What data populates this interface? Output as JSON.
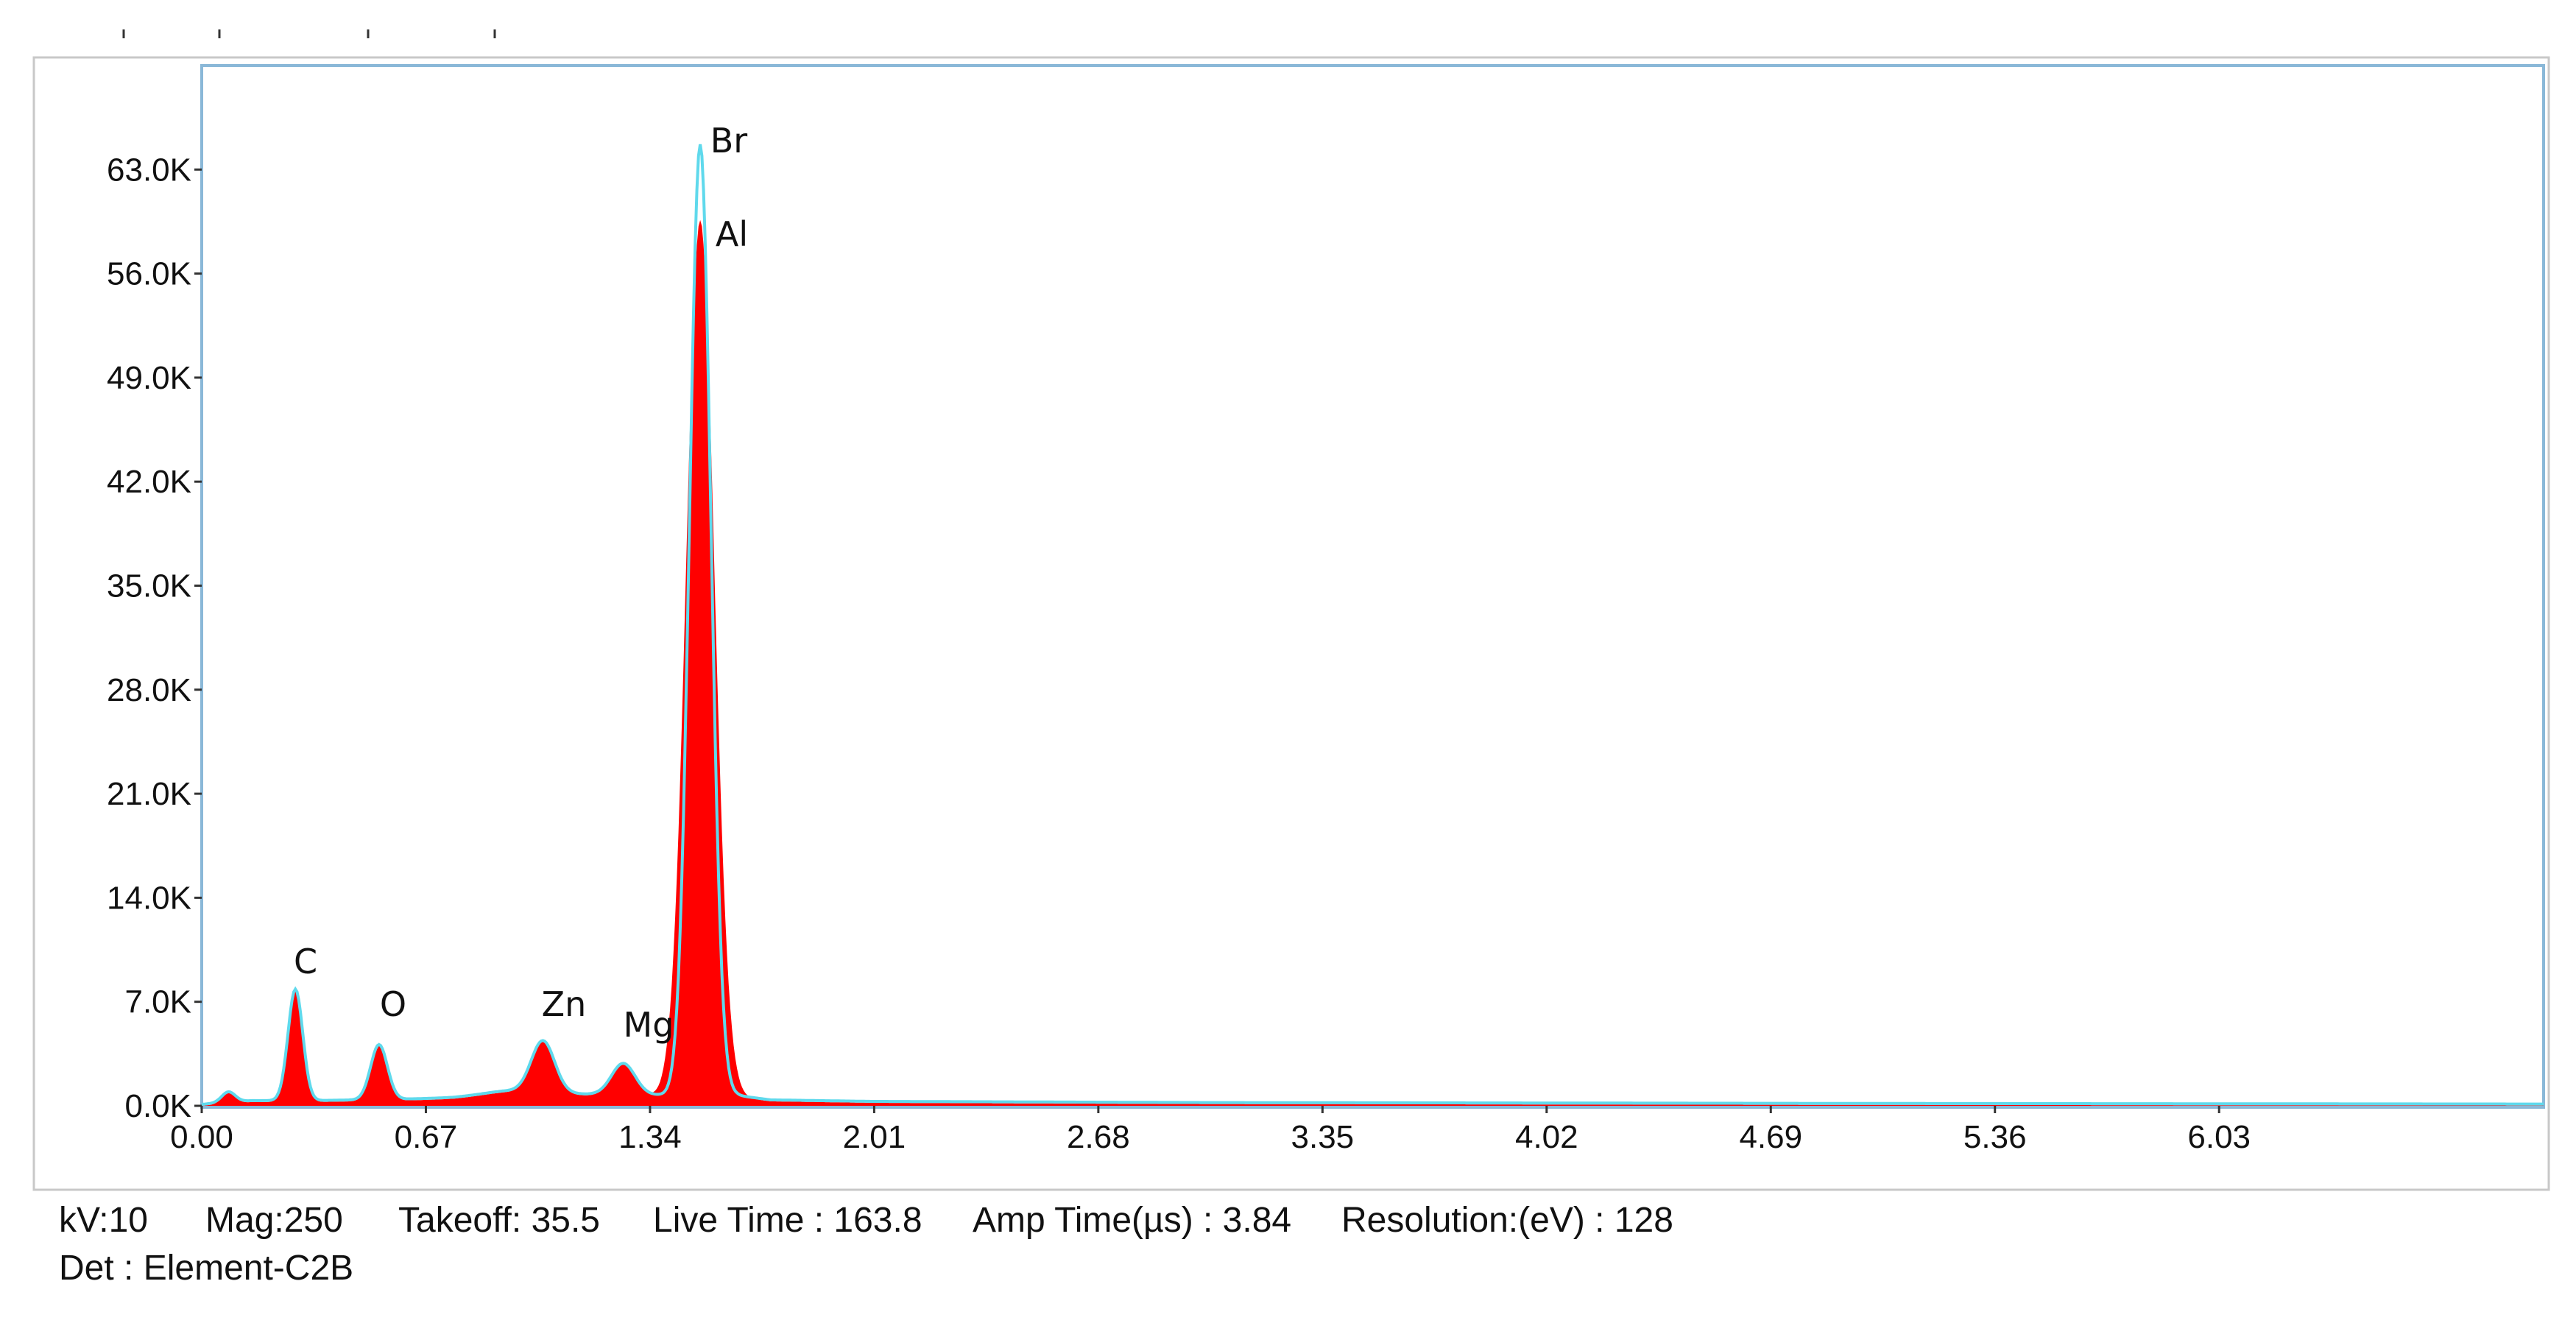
{
  "chart_data": {
    "type": "area",
    "title": "",
    "xlabel": "",
    "ylabel": "",
    "xlim": [
      0.0,
      7.0
    ],
    "ylim": [
      0,
      70000
    ],
    "x_ticks": [
      "0.00",
      "0.67",
      "1.34",
      "2.01",
      "2.68",
      "3.35",
      "4.02",
      "4.69",
      "5.36",
      "6.03"
    ],
    "y_ticks": [
      "0.0K",
      "7.0K",
      "14.0K",
      "21.0K",
      "28.0K",
      "35.0K",
      "42.0K",
      "49.0K",
      "56.0K",
      "63.0K"
    ],
    "grid": false,
    "colors": {
      "spectrum_fill": "#ff0000",
      "fit_line": "#5fd9ec",
      "axis_frame": "#8ab8d8"
    },
    "peaks": [
      {
        "label": "",
        "x": 0.08,
        "y": 700,
        "width": 0.02
      },
      {
        "label": "C",
        "x": 0.28,
        "y": 7500,
        "width": 0.022
      },
      {
        "label": "O",
        "x": 0.53,
        "y": 3700,
        "width": 0.025
      },
      {
        "label": "",
        "x": 0.92,
        "y": 250,
        "width": 0.08
      },
      {
        "label": "Zn",
        "x": 1.02,
        "y": 3500,
        "width": 0.035
      },
      {
        "label": "Mg",
        "x": 1.26,
        "y": 2100,
        "width": 0.035
      },
      {
        "label": "Al",
        "x": 1.49,
        "y": 59000,
        "width": 0.042
      },
      {
        "label": "Br",
        "x": 1.49,
        "y": 64000,
        "width": 0.032
      }
    ],
    "series": [
      {
        "type": "background",
        "x": [
          0.0,
          0.05,
          0.15,
          0.2,
          0.35,
          0.6,
          0.75,
          0.9,
          1.1,
          1.3,
          1.4,
          1.6,
          1.7,
          2.0,
          3.0,
          4.0,
          5.0,
          6.0,
          7.0
        ],
        "y": [
          0,
          100,
          250,
          250,
          260,
          350,
          450,
          650,
          700,
          650,
          600,
          600,
          300,
          200,
          120,
          90,
          60,
          40,
          20
        ]
      }
    ]
  },
  "peak_labels": {
    "c": "C",
    "o": "O",
    "zn": "Zn",
    "mg": "Mg",
    "br": "Br",
    "al": "Al"
  },
  "footer": {
    "kv": "kV:10",
    "mag": "Mag:250",
    "takeoff": "Takeoff: 35.5",
    "live_time": "Live Time : 163.8",
    "amp_time": "Amp Time(µs) : 3.84",
    "resolution": "Resolution:(eV) : 128",
    "detector": "Det : Element-C2B"
  }
}
